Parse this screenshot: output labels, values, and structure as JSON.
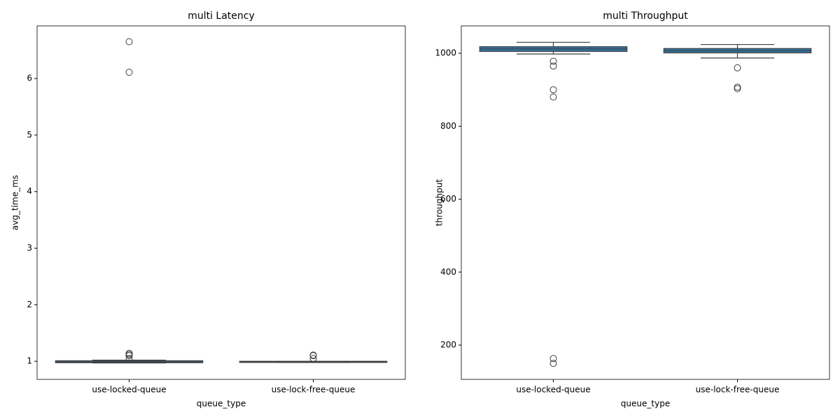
{
  "chart_data": [
    {
      "type": "box",
      "title": "multi Latency",
      "xlabel": "queue_type",
      "ylabel": "avg_time_ms",
      "categories": [
        "use-locked-queue",
        "use-lock-free-queue"
      ],
      "color": "#3274a1",
      "ylim": [
        0.68,
        6.93
      ],
      "yticks": [
        1,
        2,
        3,
        4,
        5,
        6
      ],
      "boxes": [
        {
          "whislo": 0.97,
          "q1": 0.975,
          "med": 0.99,
          "q3": 1.01,
          "whishi": 1.02,
          "fliers": [
            6.65,
            6.11,
            1.14,
            1.12,
            1.1,
            1.05
          ]
        },
        {
          "whislo": 0.98,
          "q1": 0.98,
          "med": 0.99,
          "q3": 1.0,
          "whishi": 1.0,
          "fliers": [
            1.11,
            1.1,
            1.05
          ]
        }
      ]
    },
    {
      "type": "box",
      "title": "multi Throughput",
      "xlabel": "queue_type",
      "ylabel": "throughput",
      "categories": [
        "use-locked-queue",
        "use-lock-free-queue"
      ],
      "color": "#3274a1",
      "ylim": [
        106,
        1075
      ],
      "yticks": [
        200,
        400,
        600,
        800,
        1000
      ],
      "boxes": [
        {
          "whislo": 998,
          "q1": 1005,
          "med": 1012,
          "q3": 1018,
          "whishi": 1030,
          "fliers": [
            978,
            965,
            900,
            880,
            163,
            150
          ]
        },
        {
          "whislo": 987,
          "q1": 1001,
          "med": 1007,
          "q3": 1013,
          "whishi": 1024,
          "fliers": [
            960,
            907,
            903
          ]
        }
      ]
    }
  ]
}
